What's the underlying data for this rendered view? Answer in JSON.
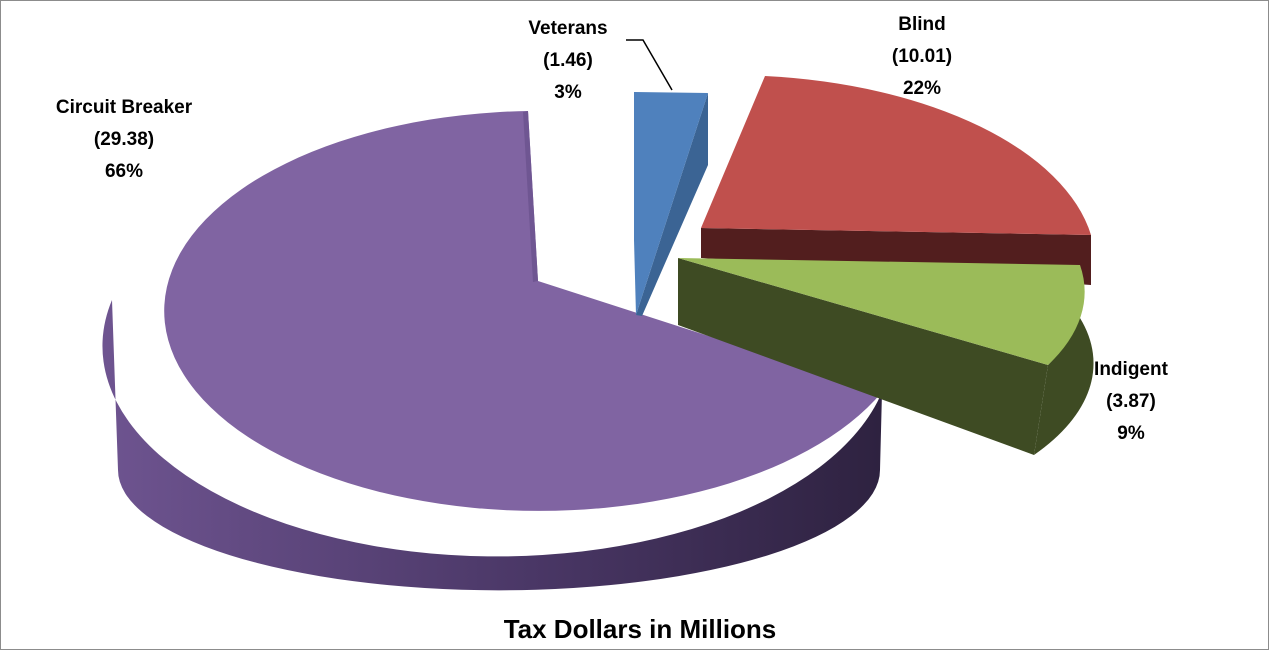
{
  "chart_data": {
    "type": "pie",
    "title": "Tax Dollars in Millions",
    "slices": [
      {
        "name": "Veterans",
        "value": 1.46,
        "value_text": "(1.46)",
        "percent_text": "3%",
        "color": "#4f81bd",
        "side_color": "#3b6494"
      },
      {
        "name": "Blind",
        "value": 10.01,
        "value_text": "(10.01)",
        "percent_text": "22%",
        "color": "#c0504d",
        "side_color": "#521e1e"
      },
      {
        "name": "Indigent",
        "value": 3.87,
        "value_text": "(3.87)",
        "percent_text": "9%",
        "color": "#9bbb59",
        "side_color": "#3e4b23"
      },
      {
        "name": "Circuit Breaker",
        "value": 29.38,
        "value_text": "(29.38)",
        "percent_text": "66%",
        "color": "#8064a2",
        "side_color": "#3d2d52"
      }
    ]
  }
}
